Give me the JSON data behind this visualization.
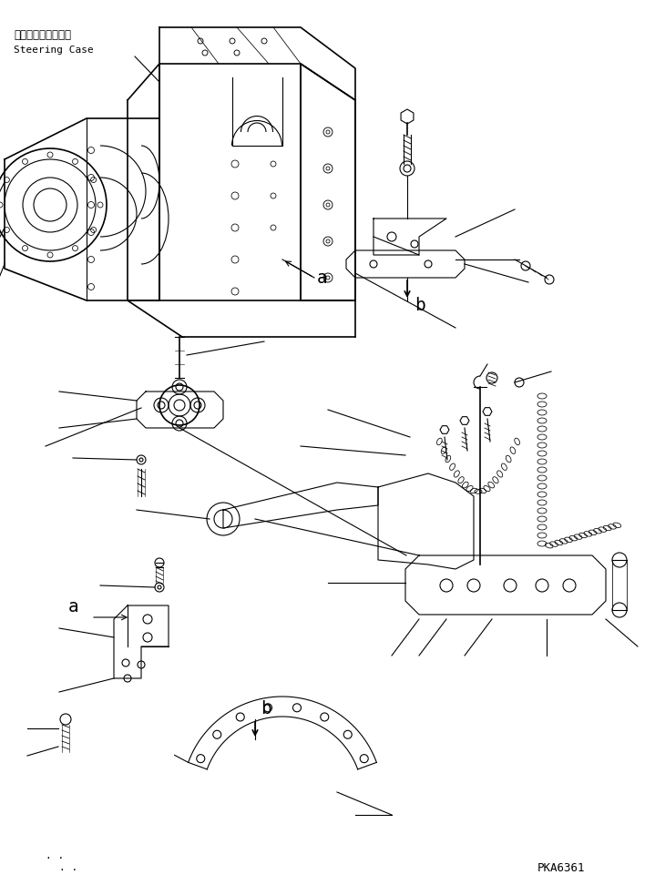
{
  "background_color": "#ffffff",
  "line_color": "#000000",
  "text_color": "#000000",
  "part_code": "PKA6361",
  "steering_case_label_jp": "ステアリングケース",
  "steering_case_label_en": "Steering Case",
  "figsize": [
    7.19,
    9.72
  ],
  "dpi": 100
}
